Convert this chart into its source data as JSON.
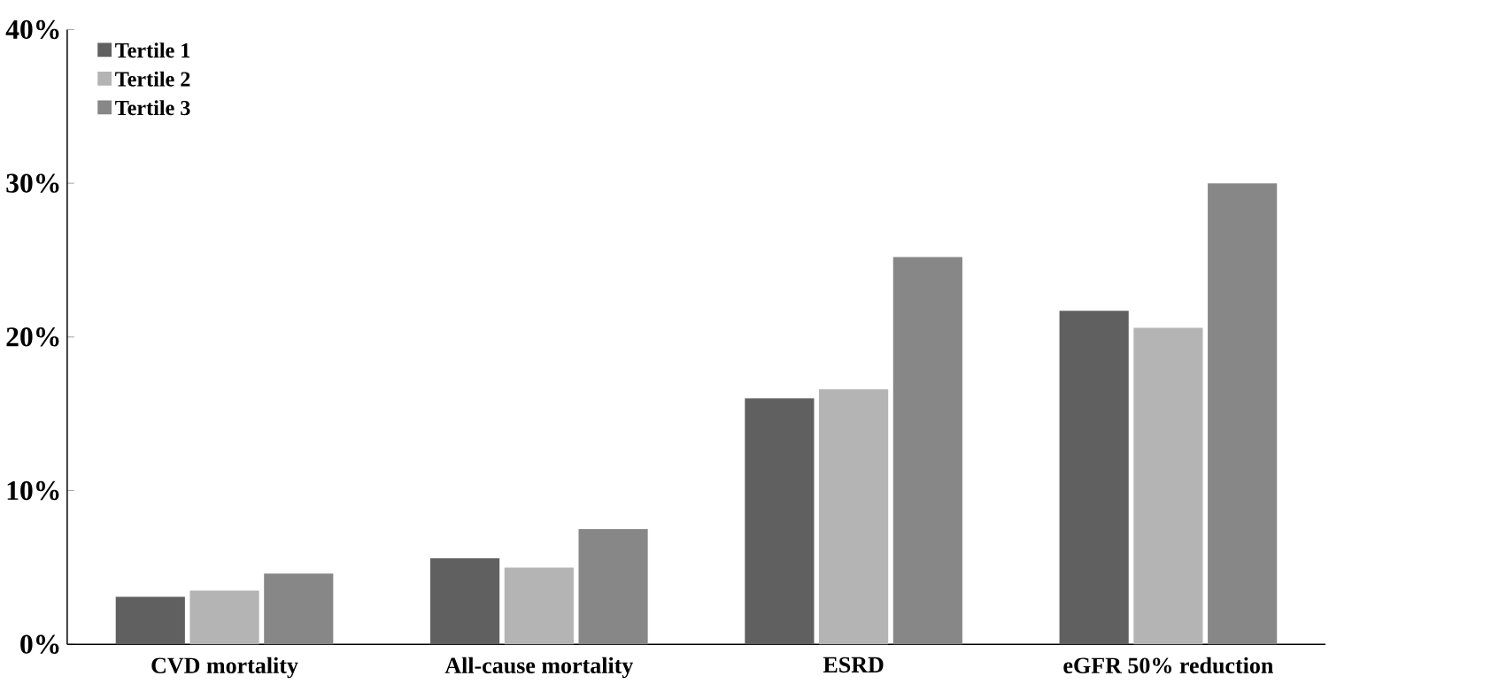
{
  "chart_data": {
    "type": "bar",
    "categories": [
      "CVD mortality",
      "All-cause mortality",
      "ESRD",
      "eGFR 50% reduction"
    ],
    "series": [
      {
        "name": "Tertile 1",
        "color": "#606060",
        "values": [
          3.1,
          5.6,
          16.0,
          21.7
        ]
      },
      {
        "name": "Tertile 2",
        "color": "#b4b4b4",
        "values": [
          3.5,
          5.0,
          16.6,
          20.6
        ]
      },
      {
        "name": "Tertile 3",
        "color": "#878787",
        "values": [
          4.6,
          7.5,
          25.2,
          30.0
        ]
      }
    ],
    "ylim": [
      0,
      40
    ],
    "yticks": [
      {
        "value": 0,
        "label": "0%"
      },
      {
        "value": 10,
        "label": "10%"
      },
      {
        "value": 20,
        "label": "20%"
      },
      {
        "value": 30,
        "label": "30%"
      },
      {
        "value": 40,
        "label": "40%"
      }
    ],
    "grid": false,
    "legend": "top left"
  }
}
